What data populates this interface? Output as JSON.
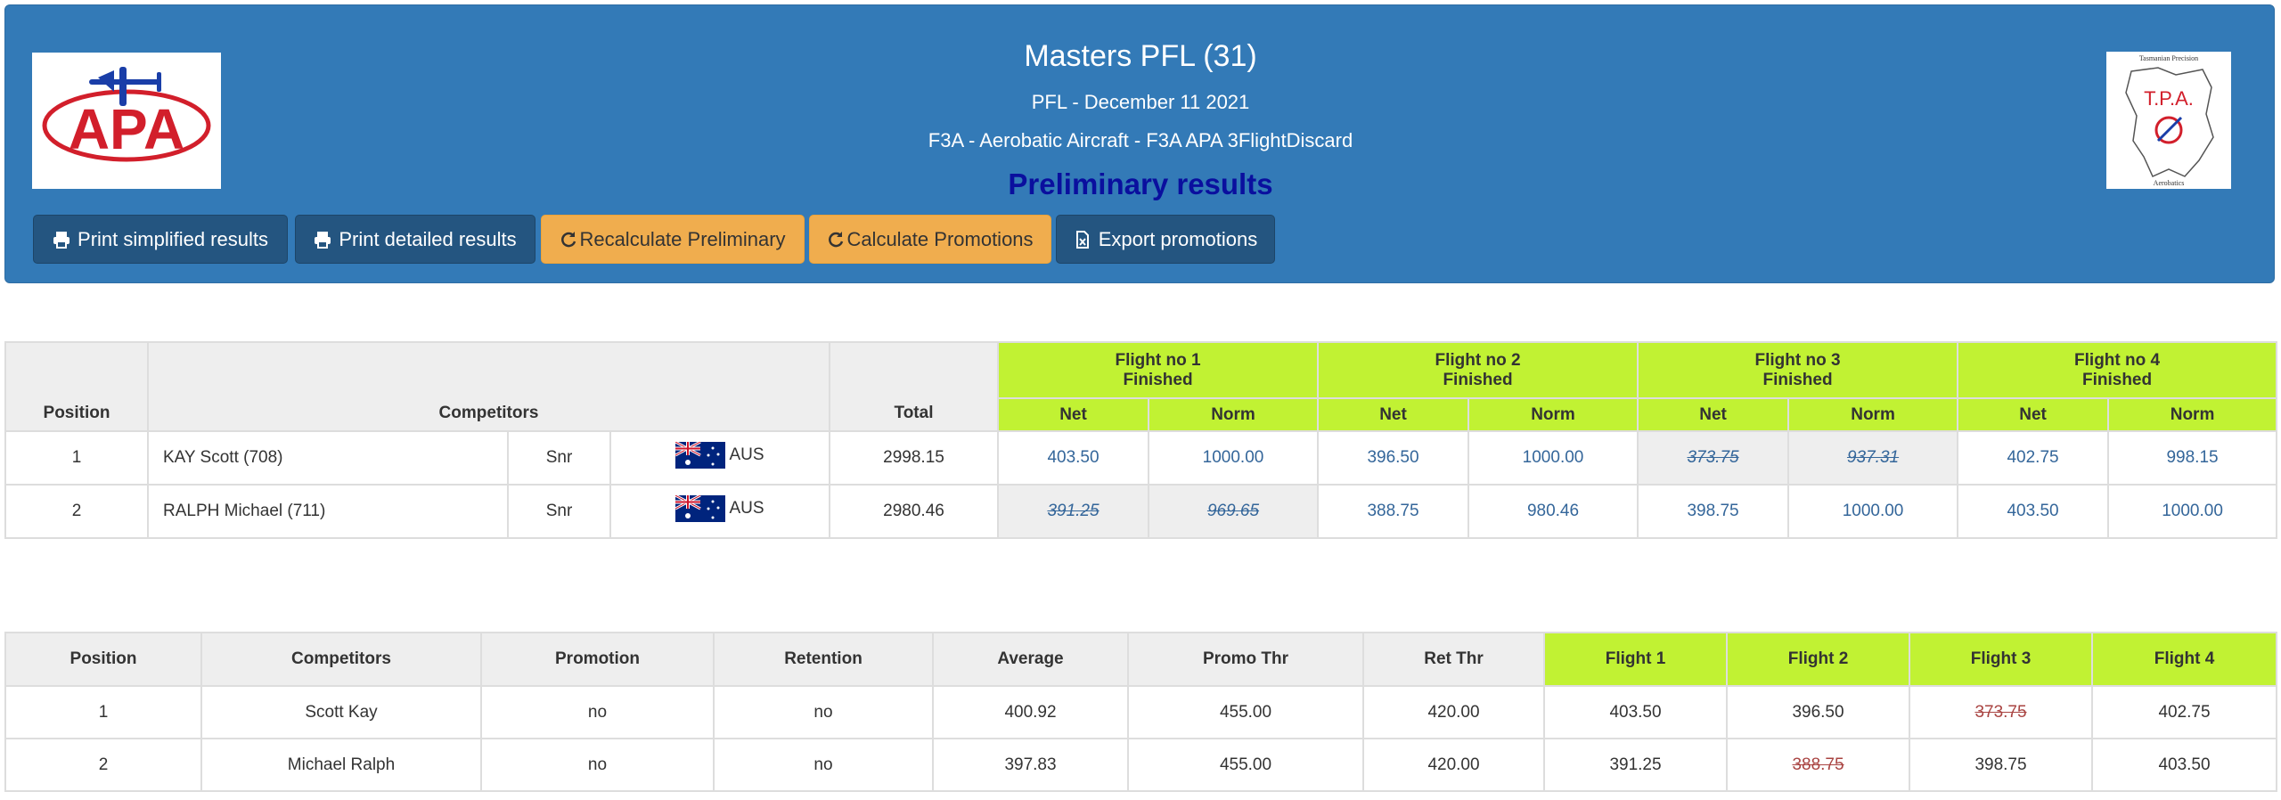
{
  "header": {
    "title": "Masters PFL (31)",
    "subtitle_date": "PFL - December 11 2021",
    "subtitle_class": "F3A - Aerobatic Aircraft - F3A APA 3FlightDiscard",
    "status": "Preliminary results",
    "logo_left": {
      "text": "APA"
    },
    "logo_right": {
      "text_top": "Tasmanian Precision",
      "text_mid": "T.P.A.",
      "text_bottom": "Aerobatics"
    }
  },
  "buttons": {
    "print_simplified": "Print simplified results",
    "print_detailed": "Print detailed results",
    "recalculate": "Recalculate Preliminary",
    "calc_promotions": "Calculate Promotions",
    "export_promotions": "Export promotions"
  },
  "colors": {
    "header_bg": "#337ab7",
    "warning": "#f0ad4e",
    "flight_header": "#c1f233",
    "prelim_text": "#0a0f9e"
  },
  "results": {
    "headers": {
      "position": "Position",
      "competitors": "Competitors",
      "total": "Total",
      "net": "Net",
      "norm": "Norm"
    },
    "flights": [
      {
        "name": "Flight no 1",
        "status": "Finished"
      },
      {
        "name": "Flight no 2",
        "status": "Finished"
      },
      {
        "name": "Flight no 3",
        "status": "Finished"
      },
      {
        "name": "Flight no 4",
        "status": "Finished"
      }
    ],
    "rows": [
      {
        "position": "1",
        "name": "KAY Scott (708)",
        "class": "Snr",
        "country": "AUS",
        "total": "2998.15",
        "f": [
          {
            "net": "403.50",
            "norm": "1000.00"
          },
          {
            "net": "396.50",
            "norm": "1000.00"
          },
          {
            "net": "373.75",
            "norm": "937.31"
          },
          {
            "net": "402.75",
            "norm": "998.15"
          }
        ]
      },
      {
        "position": "2",
        "name": "RALPH Michael (711)",
        "class": "Snr",
        "country": "AUS",
        "total": "2980.46",
        "f": [
          {
            "net": "391.25",
            "norm": "969.65"
          },
          {
            "net": "388.75",
            "norm": "980.46"
          },
          {
            "net": "398.75",
            "norm": "1000.00"
          },
          {
            "net": "403.50",
            "norm": "1000.00"
          }
        ]
      }
    ]
  },
  "promotions": {
    "headers": [
      "Position",
      "Competitors",
      "Promotion",
      "Retention",
      "Average",
      "Promo Thr",
      "Ret Thr",
      "Flight 1",
      "Flight 2",
      "Flight 3",
      "Flight 4"
    ],
    "rows": [
      [
        "1",
        "Scott Kay",
        "no",
        "no",
        "400.92",
        "455.00",
        "420.00",
        "403.50",
        "396.50",
        "373.75",
        "402.75"
      ],
      [
        "2",
        "Michael Ralph",
        "no",
        "no",
        "397.83",
        "455.00",
        "420.00",
        "391.25",
        "388.75",
        "398.75",
        "403.50"
      ]
    ]
  }
}
